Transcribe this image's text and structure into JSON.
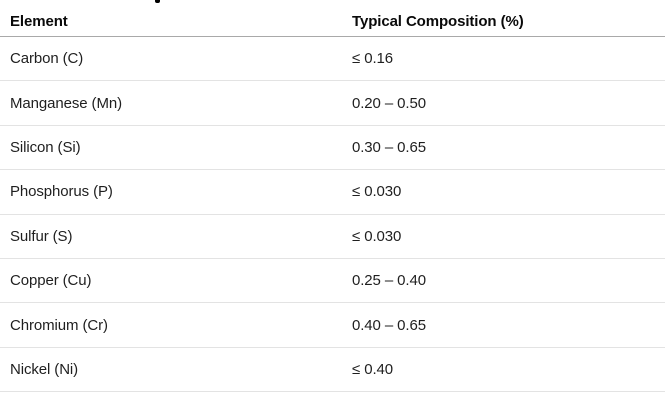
{
  "page": {
    "background": "#ffffff"
  },
  "heading_fragment": {
    "description": "partial descender of heading text cut off at top edge",
    "color": "#000000"
  },
  "table": {
    "columns": [
      {
        "label": "Element"
      },
      {
        "label": "Typical Composition (%)"
      }
    ],
    "rows": [
      {
        "element": "Carbon (C)",
        "composition": "≤ 0.16"
      },
      {
        "element": "Manganese (Mn)",
        "composition": "0.20 – 0.50"
      },
      {
        "element": "Silicon (Si)",
        "composition": "0.30 – 0.65"
      },
      {
        "element": "Phosphorus (P)",
        "composition": "≤ 0.030"
      },
      {
        "element": "Sulfur (S)",
        "composition": "≤ 0.030"
      },
      {
        "element": "Copper (Cu)",
        "composition": "0.25 – 0.40"
      },
      {
        "element": "Chromium (Cr)",
        "composition": "0.40 – 0.65"
      },
      {
        "element": "Nickel (Ni)",
        "composition": "≤ 0.40"
      }
    ],
    "colors": {
      "header_text": "#0a0a0a",
      "body_text": "#1f1f1f",
      "header_border": "#a9a9a9",
      "row_border": "#e3e3e3"
    }
  }
}
